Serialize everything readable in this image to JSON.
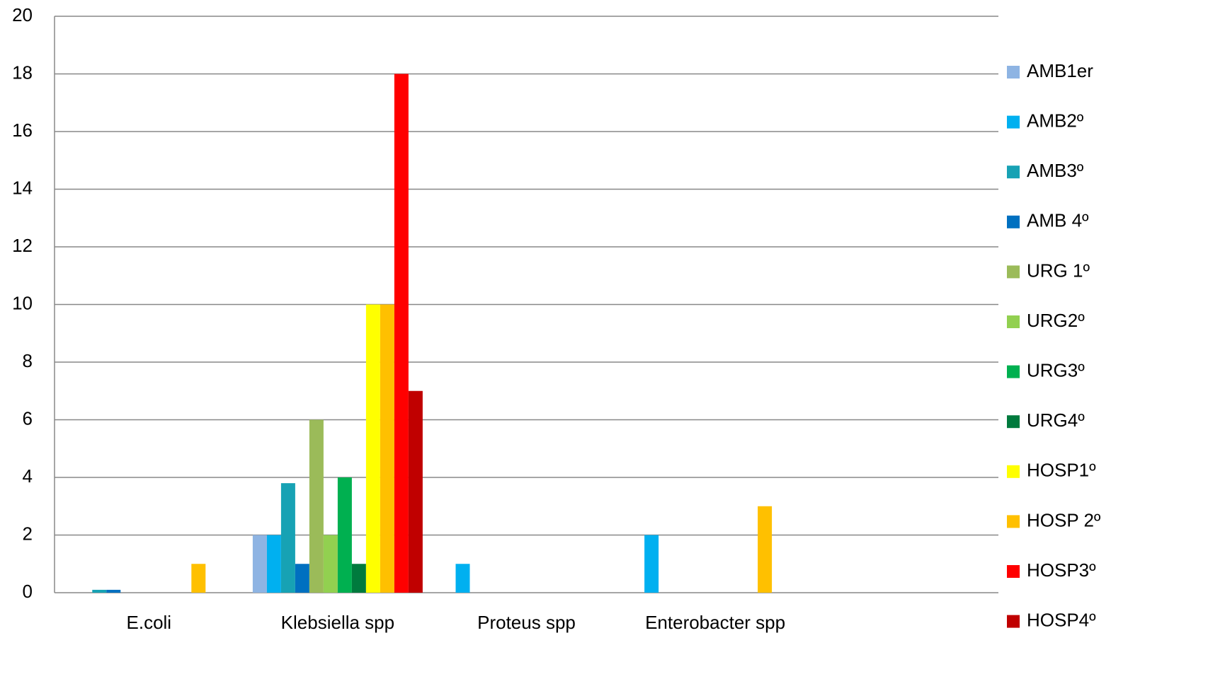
{
  "chart_data": {
    "type": "bar",
    "categories": [
      "E.coli",
      "Klebsiella spp",
      "Proteus spp",
      "Enterobacter spp",
      null
    ],
    "series": [
      {
        "name": "AMB1er",
        "color": "#8eb4e3",
        "values": [
          0,
          2,
          0,
          0,
          0
        ]
      },
      {
        "name": "AMB2º",
        "color": "#00b0f0",
        "values": [
          0,
          2,
          1,
          2,
          0
        ]
      },
      {
        "name": "AMB3º",
        "color": "#17a2b4",
        "values": [
          0.1,
          3.8,
          0,
          0,
          0
        ]
      },
      {
        "name": "AMB 4º",
        "color": "#0070c0",
        "values": [
          0.1,
          1,
          0,
          0,
          0
        ]
      },
      {
        "name": "URG 1º",
        "color": "#9bbb59",
        "values": [
          0,
          6,
          0,
          0,
          0
        ]
      },
      {
        "name": "URG2º",
        "color": "#92d050",
        "values": [
          0,
          2,
          0,
          0,
          0
        ]
      },
      {
        "name": "URG3º",
        "color": "#00b050",
        "values": [
          0,
          4,
          0,
          0,
          0
        ]
      },
      {
        "name": "URG4º",
        "color": "#007a3d",
        "values": [
          0,
          1,
          0,
          0,
          0
        ]
      },
      {
        "name": "HOSP1º",
        "color": "#ffff00",
        "values": [
          0,
          10,
          0,
          0,
          0
        ]
      },
      {
        "name": "HOSP 2º",
        "color": "#ffc000",
        "values": [
          1,
          10,
          0,
          3,
          0
        ]
      },
      {
        "name": "HOSP3º",
        "color": "#ff0000",
        "values": [
          0,
          18,
          0,
          0,
          0
        ]
      },
      {
        "name": "HOSP4º",
        "color": "#c00000",
        "values": [
          0,
          7,
          0,
          0,
          0
        ]
      }
    ],
    "ylim": [
      0,
      20
    ],
    "yticks": [
      0,
      2,
      4,
      6,
      8,
      10,
      12,
      14,
      16,
      18,
      20
    ],
    "grid": true,
    "legend": "right"
  }
}
